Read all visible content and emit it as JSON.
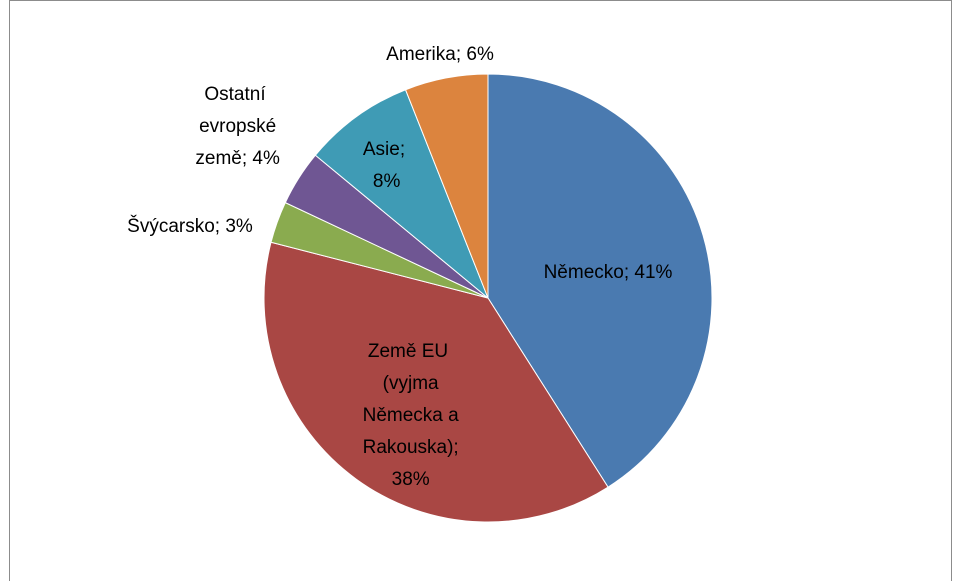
{
  "chart_data": {
    "type": "pie",
    "values": [
      41,
      38,
      3,
      4,
      8,
      6
    ],
    "value_labels": [
      "Německo; 41%",
      "Země EU (vyjma Německa a Rakouska); 38%",
      "Švýcarsko; 3%",
      "Ostatní evropské země; 4%",
      "Asie; 8%",
      "Amerika; 6%"
    ],
    "colors": [
      "#4a7ab0",
      "#a94744",
      "#8aab4f",
      "#6f5693",
      "#3f9bb5",
      "#dc843e"
    ]
  }
}
